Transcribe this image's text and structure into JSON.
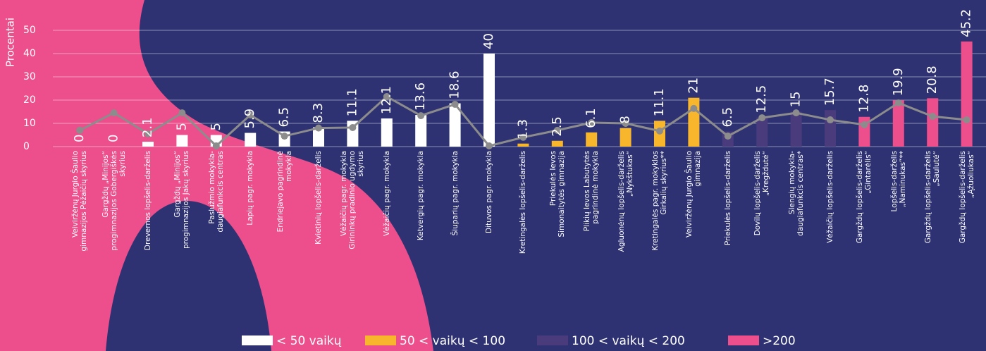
{
  "chart_data": {
    "type": "bar",
    "y_label": "Procentai",
    "ylim": [
      0,
      50
    ],
    "yticks": [
      0,
      10,
      20,
      30,
      40,
      50
    ],
    "grid": true,
    "categories": [
      "Veiviržėnų Jurgio Šaulio gimnazijos Pėžaičių skyrius",
      "Gargždų „Minijos“ progimnazijos Gobergiškės skyrius",
      "Drevernos lopšelis-darželis",
      "Gargždų „Minijos“ progimnazijos Jakų skyrius",
      "Paslužmio mokykla-daugiafunkcis centras",
      "Lapių pagr. mokykla",
      "Endriejavo pagrindinė mokykla",
      "Kvietinių lopšelis-darželis",
      "Vėžaičių pagr. mokykla Girininkų pradinio ugdymo skyrius",
      "Vėžaičių pagr. mokykla",
      "Ketvergių pagr. mokykla",
      "Šiuparių pagr. mokykla",
      "Dituvos pagr. mokykla",
      "Kretingalės lopšelis-darželis",
      "Priekulės Ievos Simonaitytės gimnazija",
      "Plikių Ievos Labutytės pagrindinė mokykla",
      "Agluonėnų lopšelis-darželis „Nykštukas“",
      "Kretingalės pagr. mokyklos Girkalių skyrius**",
      "Veiviržėnų Jurgio Šaulio gimnazija",
      "Priekulės lopšelis-darželis",
      "Dovilų lopšelis-darželis „Kregždutė“",
      "Slengių mokykla-daugiafunkcis centras*",
      "Vėžaičių lopšelis-darželis",
      "Gargždų lopšelis-darželis „Gintarėlis“",
      "Lopšelis-darželis „Naminukas“**",
      "Gargždų lopšelis-darželis „Saulutė“",
      "Gargždų lopšelis-darželis „Ąžuoliukas“"
    ],
    "series": [
      {
        "name": "< 50 vaikų",
        "color": "#ffffff",
        "values": [
          0,
          0,
          2.1,
          5,
          5,
          5.9,
          6.5,
          8.3,
          11.1,
          12.1,
          13.6,
          18.6,
          40,
          null,
          null,
          null,
          null,
          null,
          null,
          null,
          null,
          null,
          null,
          null,
          null,
          null,
          null
        ]
      },
      {
        "name": "50 < vaikų < 100",
        "color": "#f8b62d",
        "values": [
          null,
          null,
          null,
          null,
          null,
          null,
          null,
          null,
          null,
          null,
          null,
          null,
          null,
          1.3,
          2.5,
          6.1,
          8,
          11.1,
          21,
          null,
          null,
          null,
          null,
          null,
          null,
          null,
          null
        ]
      },
      {
        "name": "100 < vaikų < 200",
        "color": "#4a3b7c",
        "values": [
          null,
          null,
          null,
          null,
          null,
          null,
          null,
          null,
          null,
          null,
          null,
          null,
          null,
          null,
          null,
          null,
          null,
          null,
          null,
          6.5,
          12.5,
          15,
          15.7,
          null,
          null,
          null,
          null
        ]
      },
      {
        "name": ">200",
        "color": "#ec4f8c",
        "values": [
          null,
          null,
          null,
          null,
          null,
          null,
          null,
          null,
          null,
          null,
          null,
          null,
          null,
          null,
          null,
          null,
          null,
          null,
          null,
          null,
          null,
          null,
          null,
          12.8,
          19.9,
          20.8,
          45.2
        ]
      }
    ],
    "line": {
      "color": "#8c8c8c",
      "values": [
        7,
        14.5,
        5.5,
        14.5,
        0.3,
        13.6,
        4.5,
        8,
        8.2,
        21.5,
        13.3,
        18.2,
        0.3,
        4,
        7,
        10.3,
        10,
        6.7,
        16.4,
        4.5,
        12.4,
        14.5,
        11.5,
        9.4,
        18.8,
        13,
        11.5
      ]
    }
  }
}
